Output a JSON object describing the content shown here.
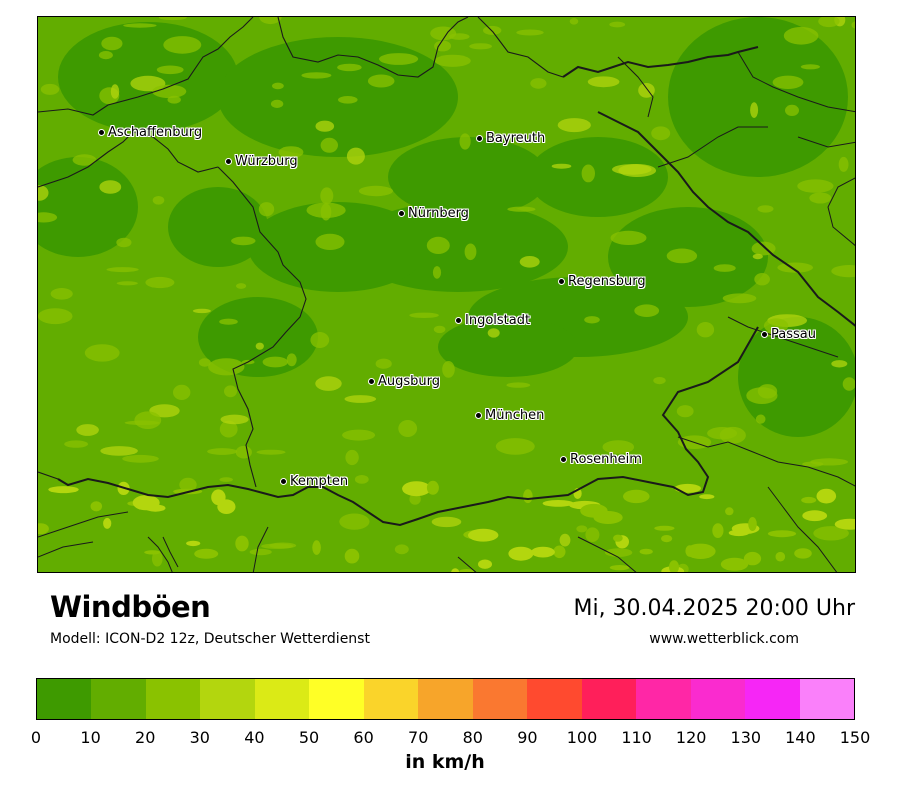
{
  "map": {
    "title": "Windböen",
    "model": "Modell: ICON-D2 12z, Deutscher Wetterdienst",
    "datetime": "Mi, 30.04.2025 20:00 Uhr",
    "website": "www.wetterblick.com",
    "cities": [
      {
        "name": "Aschaffenburg"
      },
      {
        "name": "Würzburg"
      },
      {
        "name": "Bayreuth"
      },
      {
        "name": "Nürnberg"
      },
      {
        "name": "Regensburg"
      },
      {
        "name": "Ingolstadt"
      },
      {
        "name": "Passau"
      },
      {
        "name": "Augsburg"
      },
      {
        "name": "München"
      },
      {
        "name": "Rosenheim"
      },
      {
        "name": "Kempten"
      }
    ]
  },
  "legend": {
    "unit": "in km/h",
    "ticks": [
      "0",
      "10",
      "20",
      "30",
      "40",
      "50",
      "60",
      "70",
      "80",
      "90",
      "100",
      "110",
      "120",
      "130",
      "140",
      "150"
    ],
    "colors": [
      "#3e9a00",
      "#62ad00",
      "#8ac200",
      "#b3d60e",
      "#dbea16",
      "#ffff26",
      "#fad42a",
      "#f7a52a",
      "#fa7830",
      "#ff4a2f",
      "#ff1f5a",
      "#ff27a6",
      "#fa2bcf",
      "#f626f6",
      "#fa80fa"
    ]
  }
}
